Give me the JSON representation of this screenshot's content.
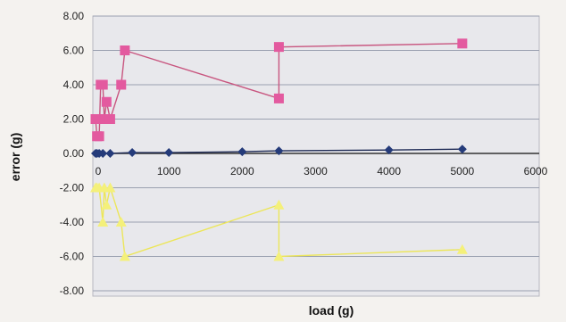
{
  "chart_data": {
    "type": "scatter",
    "xlabel": "load (g)",
    "ylabel": "error (g)",
    "xlim": [
      0,
      6000
    ],
    "ylim": [
      -8,
      8
    ],
    "x_ticks": [
      0,
      1000,
      2000,
      3000,
      4000,
      5000,
      6000
    ],
    "y_ticks": [
      8,
      6,
      4,
      2,
      0,
      -2,
      -4,
      -6,
      -8
    ],
    "x_tick_labels": [
      "0",
      "1000",
      "2000",
      "3000",
      "4000",
      "5000",
      "6000"
    ],
    "y_tick_labels": [
      "8.00",
      "6.00",
      "4.00",
      "2.00",
      "0.00",
      "-2.00",
      "-4.00",
      "-6.00",
      "-8.00"
    ],
    "grid": "horizontal",
    "legend": "none",
    "series": [
      {
        "color": "#e35a9f",
        "line_color": "#c8557f",
        "marker": "square",
        "points": [
          [
            0,
            2
          ],
          [
            20,
            1
          ],
          [
            50,
            1
          ],
          [
            70,
            4
          ],
          [
            100,
            4
          ],
          [
            120,
            2
          ],
          [
            150,
            3
          ],
          [
            200,
            2
          ],
          [
            350,
            4
          ],
          [
            400,
            6
          ],
          [
            2500,
            3.2
          ],
          [
            2500,
            6.2
          ],
          [
            5000,
            6.4
          ]
        ]
      },
      {
        "color": "#253b7a",
        "line_color": "#1e2a55",
        "marker": "diamond",
        "points": [
          [
            0,
            0
          ],
          [
            20,
            0
          ],
          [
            50,
            0
          ],
          [
            100,
            0
          ],
          [
            200,
            0
          ],
          [
            500,
            0.05
          ],
          [
            1000,
            0.05
          ],
          [
            2000,
            0.1
          ],
          [
            2500,
            0.15
          ],
          [
            4000,
            0.2
          ],
          [
            5000,
            0.25
          ]
        ]
      },
      {
        "color": "#f4f07a",
        "line_color": "#ece65a",
        "marker": "triangle",
        "points": [
          [
            0,
            -2
          ],
          [
            20,
            -2
          ],
          [
            50,
            -2
          ],
          [
            100,
            -4
          ],
          [
            120,
            -2
          ],
          [
            150,
            -3
          ],
          [
            200,
            -2
          ],
          [
            350,
            -4
          ],
          [
            400,
            -6
          ],
          [
            2500,
            -3
          ],
          [
            2500,
            -6
          ],
          [
            5000,
            -5.6
          ]
        ]
      }
    ]
  }
}
